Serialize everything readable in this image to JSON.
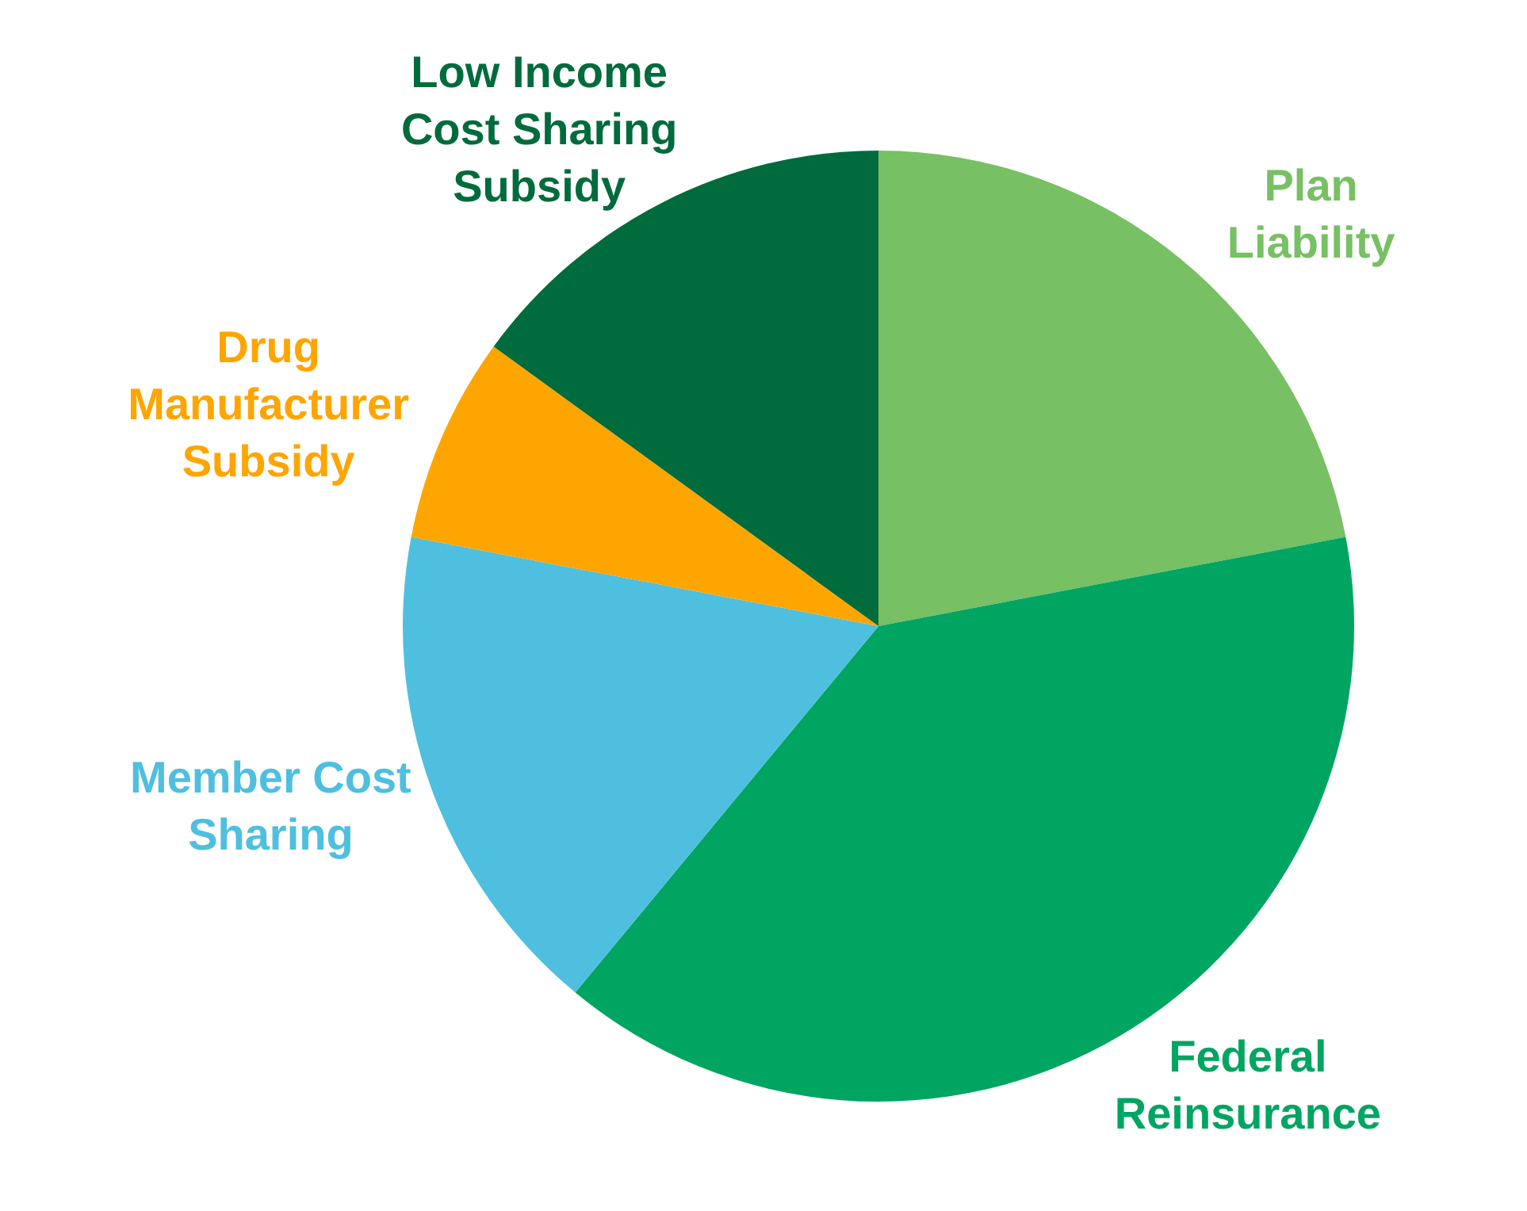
{
  "chart_data": {
    "type": "pie",
    "categories": [
      "Plan Liability",
      "Federal Reinsurance",
      "Member Cost Sharing",
      "Drug Manufacturer Subsidy",
      "Low Income Cost Sharing Subsidy"
    ],
    "values": [
      22,
      39,
      17,
      7,
      15
    ],
    "colors": [
      "#77c063",
      "#00a562",
      "#4fbfe0",
      "#ffa500",
      "#006b3c"
    ]
  }
}
